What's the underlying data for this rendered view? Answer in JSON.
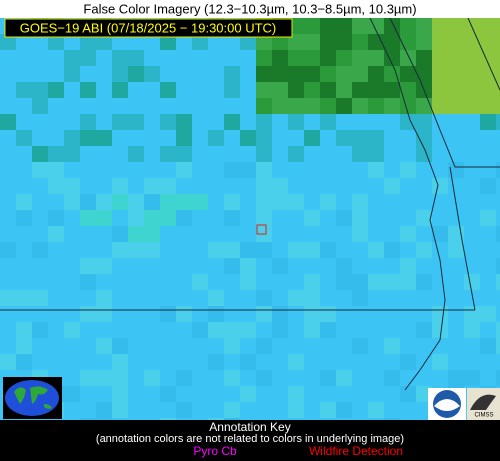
{
  "header": {
    "title": "False Color Imagery (12.3−10.3µm, 10.3−8.5µm, 10.3µm)",
    "subtitle": "GOES−19 ABI (07/18/2025 − 19:30:00 UTC)"
  },
  "annotation_key": {
    "title": "Annotation Key",
    "note": "(annotation colors are not related to colors in underlying image)",
    "items": [
      "Pyro Cb",
      "Wildfire Detection"
    ]
  },
  "logos": {
    "cimss": "CIMSS"
  }
}
